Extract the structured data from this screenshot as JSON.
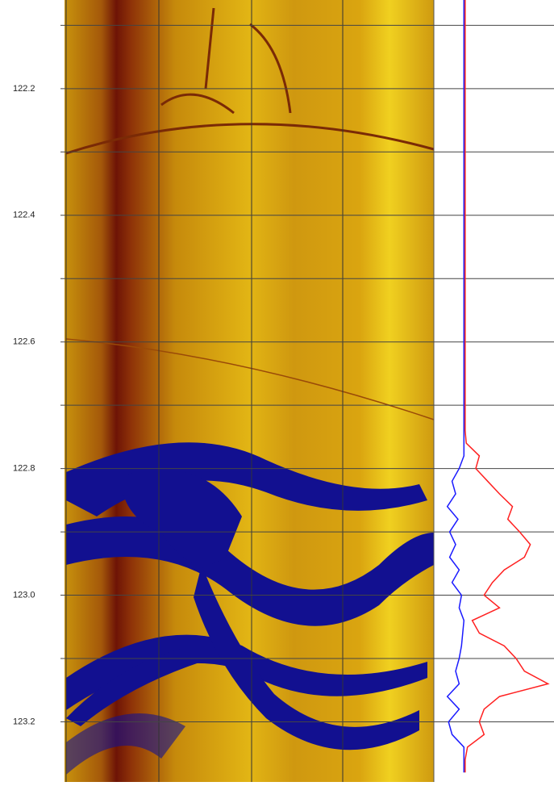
{
  "chart_data": {
    "type": "log",
    "ylim": [
      122.06,
      123.295
    ],
    "yticks": [
      122.2,
      122.4,
      122.6,
      122.8,
      {
        "value": 123,
        "label": "123.0"
      },
      123.2
    ],
    "grid_yticks": [
      122.1,
      122.3,
      122.5,
      122.7,
      122.9,
      123.1
    ],
    "xlim": [
      0,
      100
    ],
    "x": [
      122.06,
      122.2,
      122.4,
      122.6,
      122.74,
      122.76,
      122.78,
      122.8,
      122.82,
      122.84,
      122.86,
      122.88,
      122.9,
      122.92,
      122.94,
      122.96,
      122.98,
      123.0,
      123.02,
      123.04,
      123.06,
      123.08,
      123.1,
      123.12,
      123.14,
      123.16,
      123.18,
      123.2,
      123.22,
      123.24,
      123.26,
      123.28
    ],
    "series": [
      {
        "color": "#1a1aff",
        "values": [
          24,
          24,
          24,
          24,
          24,
          24,
          24,
          20,
          14,
          17,
          10,
          19,
          12,
          17,
          12,
          20,
          14,
          22,
          20,
          24,
          23,
          22,
          20,
          17,
          20,
          10,
          20,
          11,
          14,
          24,
          24,
          24
        ]
      },
      {
        "color": "#ff2020",
        "values": [
          25,
          25,
          25,
          25,
          25,
          26,
          37,
          34,
          44,
          54,
          65,
          61,
          71,
          80,
          75,
          58,
          48,
          41,
          54,
          31,
          37,
          58,
          68,
          75,
          95,
          54,
          41,
          37,
          41,
          27,
          25,
          25
        ]
      }
    ],
    "grid": true
  }
}
